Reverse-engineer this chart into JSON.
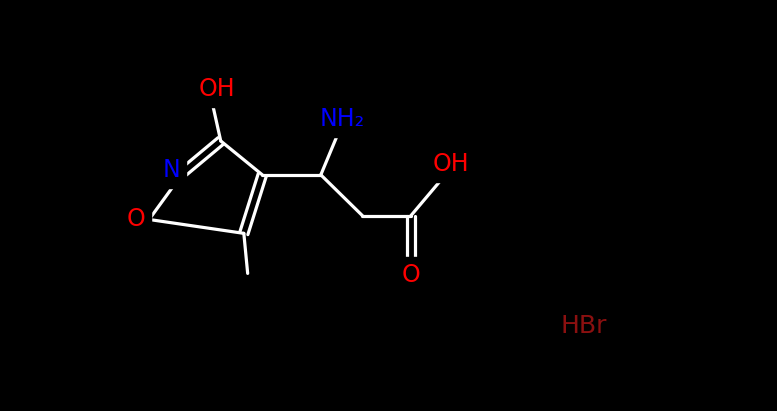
{
  "bg": "#000000",
  "fw": 7.77,
  "fh": 4.11,
  "dpi": 100,
  "white": "#ffffff",
  "blue": "#0000ff",
  "red": "#ff0000",
  "dark_red": "#8b1010",
  "lw": 2.3,
  "xlim": [
    0.0,
    7.77
  ],
  "ylim": [
    0.0,
    4.11
  ]
}
